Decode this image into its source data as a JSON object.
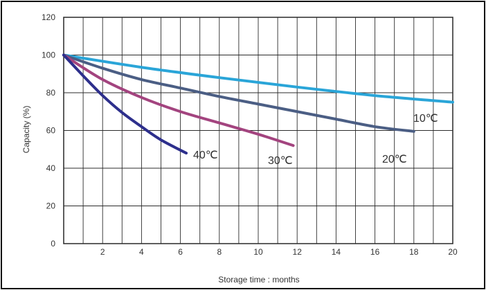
{
  "chart_data": {
    "type": "line",
    "xlabel": "Storage time : months",
    "ylabel": "Capacity (%)",
    "xlim": [
      0,
      20
    ],
    "ylim": [
      0,
      120
    ],
    "x_ticks": [
      "2",
      "4",
      "6",
      "8",
      "10",
      "12",
      "14",
      "16",
      "18",
      "20"
    ],
    "y_ticks": [
      "0",
      "20",
      "40",
      "60",
      "80",
      "100",
      "120"
    ],
    "grid": true,
    "series": [
      {
        "name": "10℃",
        "color": "#2aa5d8",
        "points": [
          [
            0,
            100
          ],
          [
            4,
            93.5
          ],
          [
            8,
            88
          ],
          [
            12,
            83
          ],
          [
            16,
            78.5
          ],
          [
            20,
            75
          ]
        ]
      },
      {
        "name": "20℃",
        "color": "#4b5e84",
        "points": [
          [
            0,
            100
          ],
          [
            2,
            93
          ],
          [
            4,
            87
          ],
          [
            6,
            82.5
          ],
          [
            8,
            78
          ],
          [
            10,
            74
          ],
          [
            12,
            70
          ],
          [
            14,
            66
          ],
          [
            16,
            62
          ],
          [
            18,
            59.5
          ]
        ]
      },
      {
        "name": "30℃",
        "color": "#a3447f",
        "points": [
          [
            0,
            100
          ],
          [
            2,
            87
          ],
          [
            4,
            77.5
          ],
          [
            6,
            70
          ],
          [
            8,
            64
          ],
          [
            10,
            58
          ],
          [
            11.8,
            52
          ]
        ]
      },
      {
        "name": "40℃",
        "color": "#2d2f8c",
        "points": [
          [
            0,
            100
          ],
          [
            1,
            89
          ],
          [
            2,
            78.5
          ],
          [
            3,
            69.5
          ],
          [
            4,
            62
          ],
          [
            5,
            55
          ],
          [
            6.3,
            48
          ]
        ]
      }
    ]
  }
}
